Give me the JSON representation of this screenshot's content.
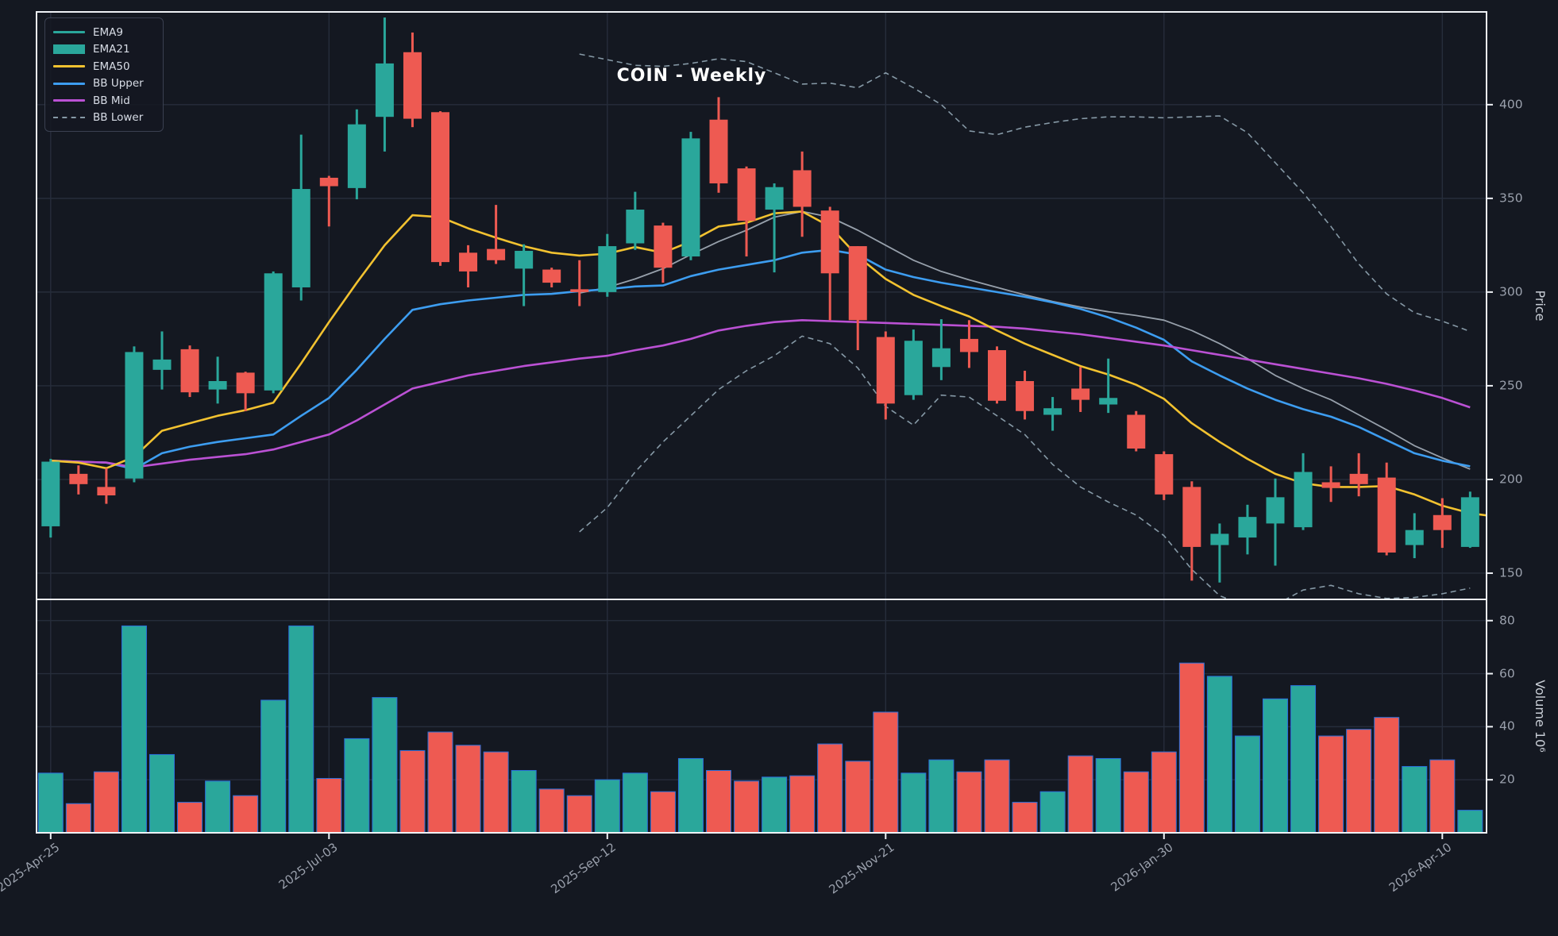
{
  "title": "COIN - Weekly",
  "legend": [
    {
      "label": "EMA9",
      "swatch": "line",
      "color": "#2aa79b"
    },
    {
      "label": "EMA21",
      "swatch": "patch",
      "color": "#2aa79b"
    },
    {
      "label": "EMA50",
      "swatch": "line",
      "color": "#f2c230"
    },
    {
      "label": "BB Upper",
      "swatch": "line",
      "color": "#3d9df0"
    },
    {
      "label": "BB Mid",
      "swatch": "line",
      "color": "#bb51d4"
    },
    {
      "label": "BB Lower",
      "swatch": "dashed",
      "color": "#8699a6"
    }
  ],
  "axes": {
    "price_label": "Price",
    "volume_label": "Volume  10⁶",
    "price_ticks": [
      400,
      350,
      300,
      250,
      200,
      150
    ],
    "volume_ticks": [
      80,
      60,
      40,
      20
    ],
    "x_ticks": [
      {
        "label": "2025-Apr-25",
        "week": 0
      },
      {
        "label": "2025-Jul-03",
        "week": 10
      },
      {
        "label": "2025-Sep-12",
        "week": 20
      },
      {
        "label": "2025-Nov-21",
        "week": 30
      },
      {
        "label": "2026-Jan-30",
        "week": 40
      },
      {
        "label": "2026-Apr-10",
        "week": 50
      }
    ]
  },
  "colors": {
    "background": "#141821",
    "grid": "#262d3b",
    "up": "#2aa79b",
    "down": "#ee5a52",
    "spine": "#eef1f5",
    "tick_text": "#9aa0ac",
    "title_text": "#ffffff",
    "volume_bar_edge": "#2a6fdb",
    "ema50": "#f2c230",
    "bb_upper": "#3d9df0",
    "bb_mid": "#bb51d4",
    "gray_ma": "#97a0ab",
    "bb_outer": "#8699a6"
  },
  "chart_data": {
    "type": "candlestick",
    "symbol": "COIN",
    "interval": "Weekly",
    "title": "COIN - Weekly",
    "weeks": 52,
    "price_ylim": [
      136,
      449.5
    ],
    "volume_ylim": [
      0,
      88
    ],
    "grid": true,
    "legend_position": "upper-left",
    "candles_ohlc": [
      [
        175.0,
        211.0,
        169.0,
        209.5
      ],
      [
        203.0,
        207.5,
        192.0,
        197.5
      ],
      [
        196.0,
        206.0,
        187.0,
        191.5
      ],
      [
        200.5,
        271.0,
        198.5,
        268.0
      ],
      [
        258.5,
        279.0,
        248.0,
        264.0
      ],
      [
        269.5,
        271.5,
        244.0,
        246.5
      ],
      [
        248.0,
        265.5,
        240.5,
        252.5
      ],
      [
        257.0,
        257.5,
        236.5,
        246.0
      ],
      [
        247.5,
        311.0,
        246.0,
        310.0
      ],
      [
        302.5,
        384.0,
        295.5,
        355.0
      ],
      [
        361.0,
        362.0,
        335.0,
        356.5
      ],
      [
        355.5,
        397.5,
        349.5,
        389.5
      ],
      [
        393.5,
        446.5,
        375.0,
        422.0
      ],
      [
        428.0,
        438.5,
        388.0,
        392.5
      ],
      [
        396.0,
        396.5,
        314.0,
        316.0
      ],
      [
        321.0,
        325.0,
        302.5,
        311.0
      ],
      [
        323.0,
        346.5,
        315.0,
        317.0
      ],
      [
        312.5,
        325.5,
        292.5,
        322.0
      ],
      [
        312.0,
        313.0,
        302.5,
        305.0
      ],
      [
        301.5,
        317.0,
        292.5,
        300.0
      ],
      [
        300.0,
        331.0,
        297.5,
        324.5
      ],
      [
        326.0,
        353.5,
        322.5,
        344.0
      ],
      [
        335.5,
        337.0,
        305.0,
        313.0
      ],
      [
        319.0,
        385.5,
        317.0,
        382.0
      ],
      [
        392.0,
        404.0,
        353.0,
        358.0
      ],
      [
        366.0,
        367.0,
        319.0,
        338.0
      ],
      [
        344.0,
        358.0,
        310.5,
        356.0
      ],
      [
        365.0,
        375.0,
        329.5,
        345.5
      ],
      [
        343.5,
        345.5,
        285.0,
        310.0
      ],
      [
        324.5,
        324.5,
        269.0,
        285.0
      ],
      [
        276.0,
        279.0,
        232.0,
        240.5
      ],
      [
        245.0,
        280.0,
        242.5,
        274.0
      ],
      [
        260.0,
        285.5,
        253.0,
        270.0
      ],
      [
        275.0,
        285.0,
        259.5,
        268.0
      ],
      [
        269.0,
        271.0,
        240.5,
        242.0
      ],
      [
        252.5,
        258.0,
        232.0,
        236.5
      ],
      [
        234.5,
        244.0,
        226.0,
        238.0
      ],
      [
        248.5,
        260.0,
        236.0,
        242.5
      ],
      [
        240.0,
        264.5,
        235.5,
        243.5
      ],
      [
        234.5,
        236.5,
        215.0,
        216.5
      ],
      [
        213.5,
        215.0,
        189.0,
        192.0
      ],
      [
        196.0,
        199.0,
        146.0,
        164.0
      ],
      [
        165.0,
        176.5,
        145.0,
        171.0
      ],
      [
        169.0,
        186.5,
        160.0,
        180.0
      ],
      [
        176.5,
        200.5,
        154.0,
        190.5
      ],
      [
        174.5,
        214.0,
        173.0,
        204.0
      ],
      [
        198.5,
        207.0,
        188.0,
        195.5
      ],
      [
        203.0,
        214.0,
        191.0,
        197.5
      ],
      [
        201.0,
        209.0,
        159.5,
        161.0
      ],
      [
        165.0,
        182.0,
        158.0,
        173.0
      ],
      [
        181.0,
        190.0,
        163.5,
        173.0
      ],
      [
        164.0,
        193.5,
        163.5,
        190.5
      ]
    ],
    "volumes_millions": [
      22.5,
      11,
      23,
      78,
      29.5,
      11.5,
      19.5,
      14,
      50,
      78,
      20.5,
      35.5,
      51,
      31,
      38,
      33,
      30.5,
      23.5,
      16.5,
      14,
      20,
      22.5,
      15.5,
      28,
      23.5,
      19.5,
      21,
      21.5,
      33.5,
      27,
      45.5,
      22.5,
      27.5,
      23,
      27.5,
      11.5,
      15.5,
      29,
      28,
      23,
      30.5,
      64,
      59,
      36.5,
      50.5,
      55.5,
      36.5,
      39,
      43.5,
      25,
      27.5,
      8.5
    ],
    "overlays": {
      "ema50": {
        "start_week": 0,
        "dashed": false,
        "width": 2.6,
        "color_key": "ema50",
        "values": [
          210,
          209,
          206,
          212,
          226,
          230,
          234,
          237,
          241,
          262,
          284,
          305,
          325,
          341,
          340,
          334,
          329,
          324.5,
          321,
          319.5,
          320.5,
          324,
          321,
          327,
          335,
          337,
          342,
          343,
          335,
          319,
          307,
          298.5,
          292.5,
          287,
          279.5,
          272.5,
          266.5,
          260.5,
          256,
          250.5,
          243,
          230,
          220,
          211,
          203,
          198,
          196,
          196,
          196.5,
          192,
          186,
          182,
          180
        ]
      },
      "bb_upper": {
        "start_week": 0,
        "dashed": false,
        "width": 2.6,
        "color_key": "bb_upper",
        "values": [
          210,
          209.5,
          209,
          205.5,
          214,
          217.5,
          220,
          222,
          224,
          234,
          243.5,
          258.5,
          275,
          290.5,
          293.5,
          295.5,
          297,
          298.5,
          299,
          300.5,
          301.5,
          303,
          303.5,
          308.5,
          312,
          314.5,
          317,
          321,
          322.5,
          320,
          312,
          308,
          305,
          302.5,
          300,
          297.5,
          294.5,
          291,
          286.5,
          281,
          274.5,
          263,
          255.5,
          248.5,
          242.5,
          237.5,
          233.5,
          228,
          221,
          214,
          210,
          207
        ]
      },
      "bb_mid": {
        "start_week": 0,
        "dashed": false,
        "width": 2.6,
        "color_key": "bb_mid",
        "values": [
          210,
          209.5,
          209,
          206.5,
          208.5,
          210.5,
          212,
          213.5,
          216,
          220,
          224,
          231.5,
          240,
          248.5,
          252,
          255.5,
          258,
          260.5,
          262.5,
          264.5,
          266,
          269,
          271.5,
          275,
          279.5,
          282,
          284,
          285,
          284.5,
          284,
          283.5,
          283,
          282.5,
          282,
          281.5,
          280.5,
          279,
          277.5,
          275.5,
          273.5,
          271.5,
          269,
          266.5,
          264,
          261.5,
          259,
          256.5,
          254,
          251,
          247.5,
          243.5,
          238.5
        ]
      },
      "gray_ma": {
        "start_week": 19,
        "dashed": false,
        "width": 1.8,
        "color_key": "gray_ma",
        "values": [
          299.5,
          302.5,
          307,
          312.5,
          320,
          327,
          333,
          340,
          343,
          340,
          333,
          325,
          317,
          311,
          306.5,
          302.5,
          298.5,
          295,
          292,
          289.5,
          287.5,
          285,
          279.5,
          272.5,
          264.5,
          255.5,
          248.5,
          242.5,
          234.5,
          226.5,
          218,
          211.5,
          205.5
        ]
      },
      "bb_outer_upper": {
        "start_week": 19,
        "dashed": true,
        "width": 1.6,
        "color_key": "bb_outer",
        "values": [
          427,
          424,
          421,
          420.5,
          422,
          424.5,
          423,
          417,
          411,
          411.5,
          409,
          417,
          409,
          400,
          386,
          384,
          388,
          390.5,
          392.5,
          393.5,
          393.5,
          393,
          393.5,
          394,
          385,
          369,
          353,
          335,
          315,
          299,
          289,
          284.5,
          279
        ]
      },
      "bb_outer_lower": {
        "start_week": 19,
        "dashed": true,
        "width": 1.6,
        "color_key": "bb_outer",
        "values": [
          172,
          185,
          204,
          220,
          234,
          248,
          258,
          266,
          276.5,
          272.5,
          259.5,
          239,
          229,
          245,
          244,
          234,
          224,
          208,
          196,
          188,
          181,
          170,
          152,
          138,
          132,
          133,
          141,
          143.5,
          139,
          136.5,
          137,
          139,
          142
        ]
      }
    }
  }
}
